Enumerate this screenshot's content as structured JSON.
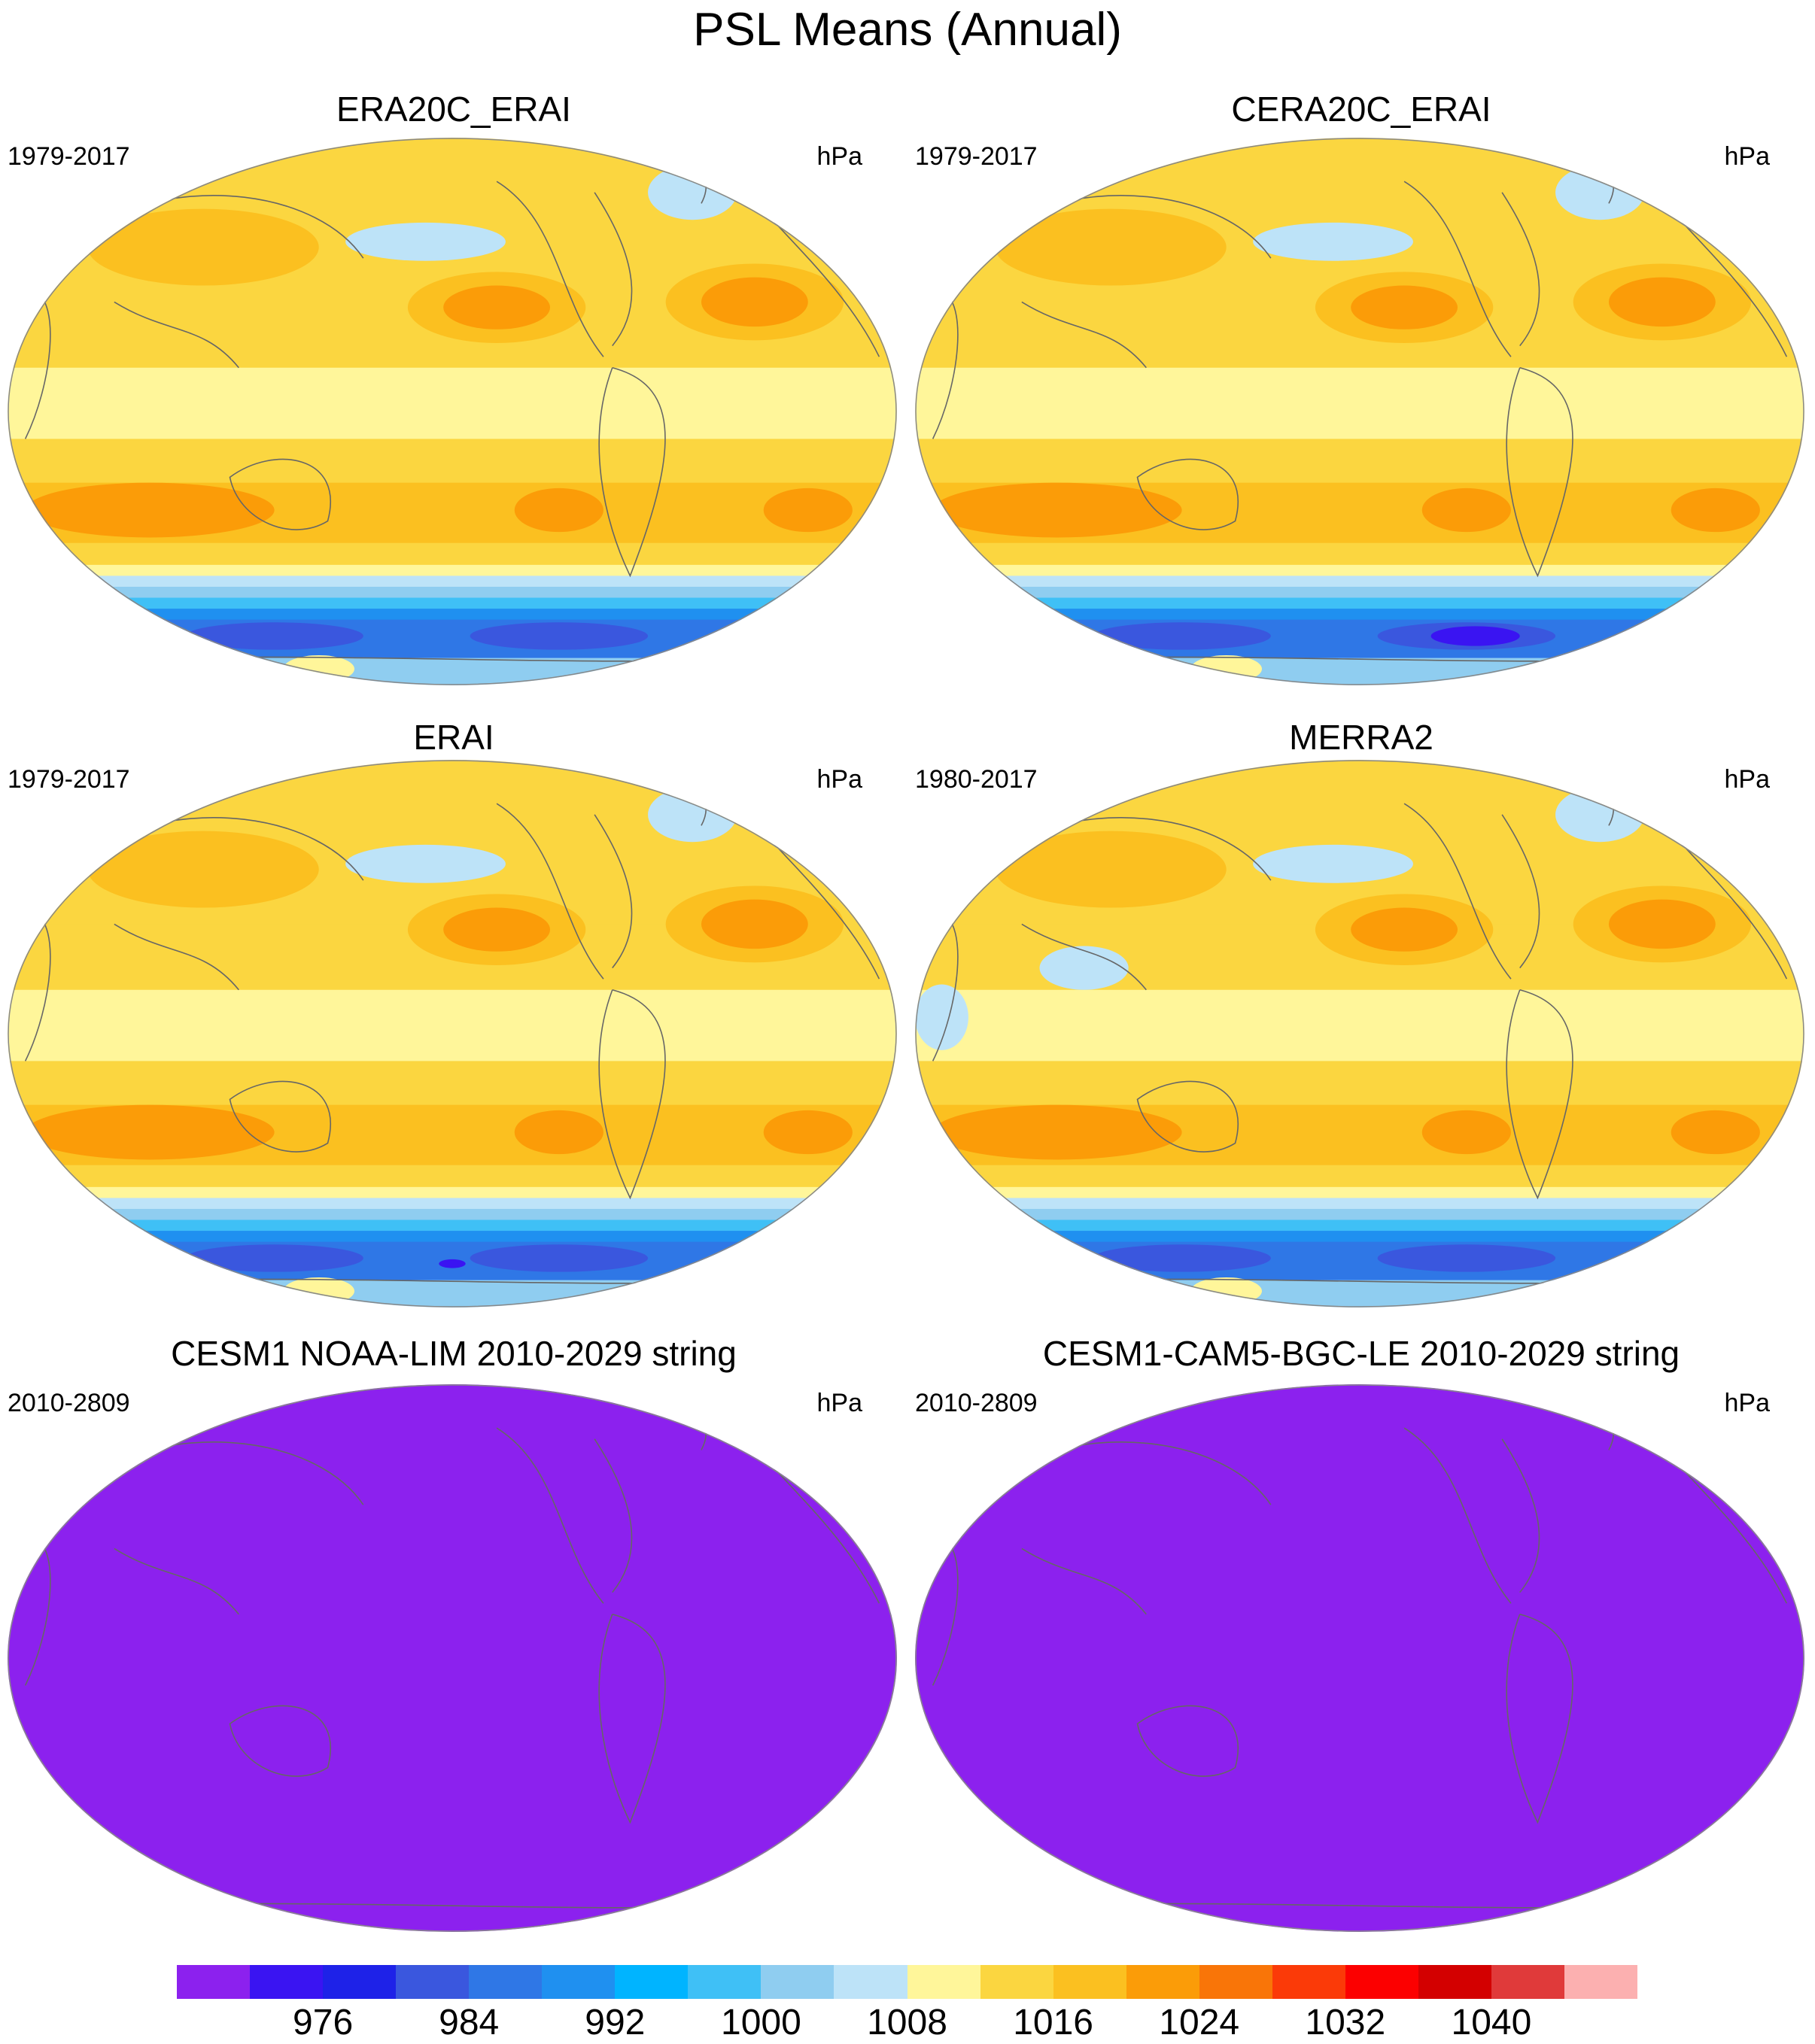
{
  "title": "PSL Means (Annual)",
  "panels": [
    {
      "title": "ERA20C_ERAI",
      "left": "1979-2017",
      "right": "hPa",
      "style": "era20c"
    },
    {
      "title": "CERA20C_ERAI",
      "left": "1979-2017",
      "right": "hPa",
      "style": "cera20c"
    },
    {
      "title": "ERAI",
      "left": "1979-2017",
      "right": "hPa",
      "style": "erai"
    },
    {
      "title": "MERRA2",
      "left": "1980-2017",
      "right": "hPa",
      "style": "merra2"
    },
    {
      "title": "CESM1 NOAA-LIM 2010-2029 string",
      "left": "2010-2809",
      "right": "hPa",
      "style": "flat"
    },
    {
      "title": "CESM1-CAM5-BGC-LE 2010-2029 string",
      "left": "2010-2809",
      "right": "hPa",
      "style": "flat"
    }
  ],
  "colorbar": {
    "colors": [
      "#8c21ee",
      "#3a14f2",
      "#1e22e8",
      "#3a57de",
      "#2f77e6",
      "#1f90f0",
      "#00b4ff",
      "#3fc0f6",
      "#8fcdf0",
      "#bde3f8",
      "#fff69a",
      "#fbd640",
      "#fbc020",
      "#fb9c08",
      "#f97508",
      "#fb3a08",
      "#fc0000",
      "#d30000",
      "#e03a3a",
      "#fcb0b0"
    ],
    "labels": [
      "976",
      "984",
      "992",
      "1000",
      "1008",
      "1016",
      "1024",
      "1032",
      "1040"
    ],
    "label_box_index": [
      2,
      4,
      6,
      8,
      10,
      12,
      14,
      16,
      18
    ]
  }
}
